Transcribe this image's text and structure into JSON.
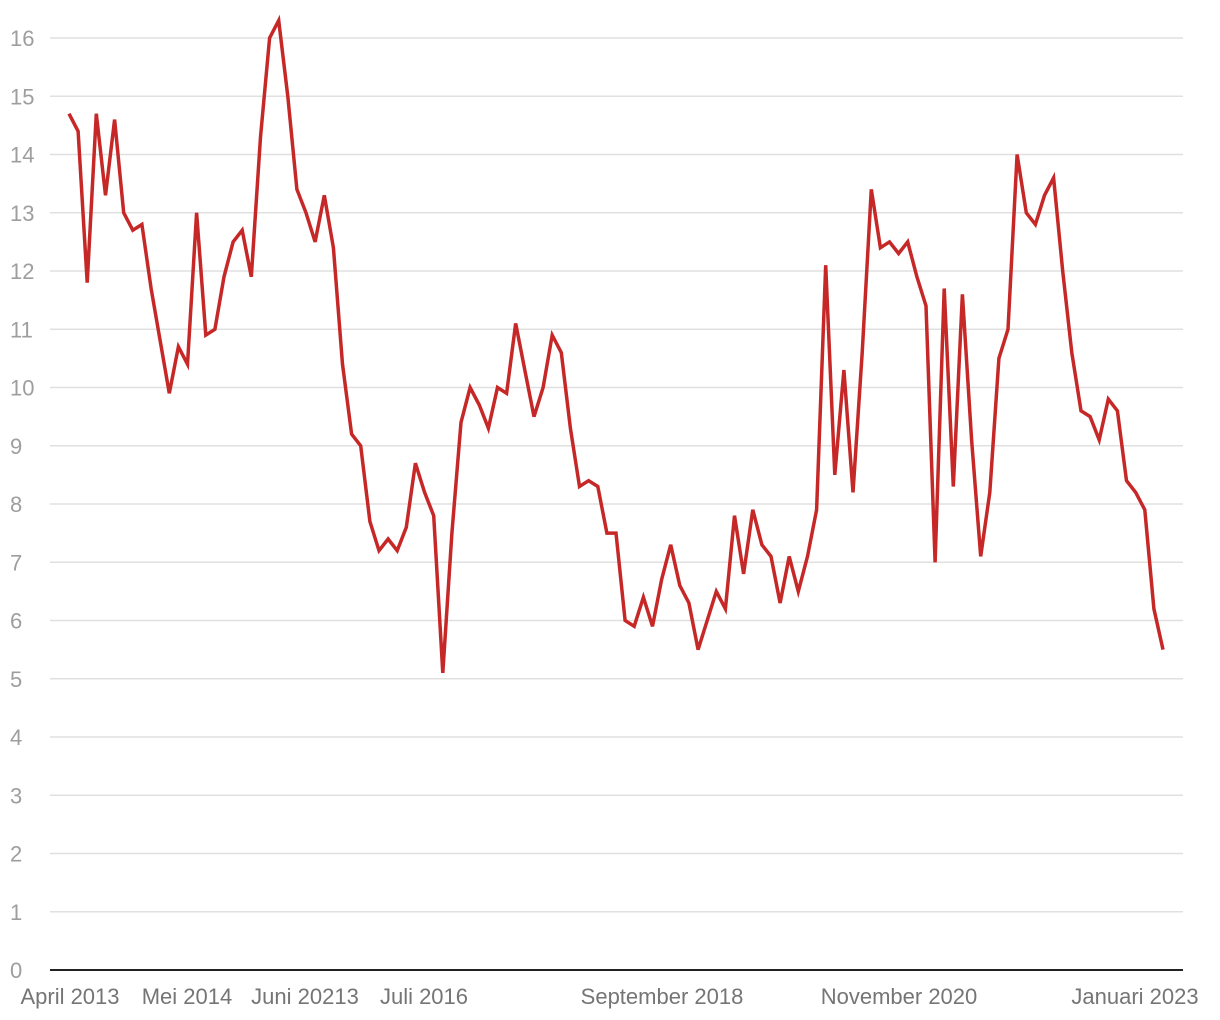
{
  "chart_data": {
    "type": "line",
    "title": "",
    "xlabel": "",
    "ylabel": "",
    "ylim": [
      0,
      16
    ],
    "y_ticks": [
      0,
      1,
      2,
      3,
      4,
      5,
      6,
      7,
      8,
      9,
      10,
      11,
      12,
      13,
      14,
      15,
      16
    ],
    "x_tick_labels": [
      "April 2013",
      "Mei 2014",
      "Juni 20213",
      "Juli 2016",
      "September 2018",
      "November 2020",
      "Januari 2023"
    ],
    "grid": true,
    "legend": "none",
    "series": [
      {
        "color": "#c62828",
        "values": [
          14.7,
          14.4,
          11.8,
          14.7,
          13.3,
          14.6,
          13.0,
          12.7,
          12.8,
          11.7,
          10.8,
          9.9,
          10.7,
          10.4,
          13.0,
          10.9,
          11.0,
          11.9,
          12.5,
          12.7,
          11.9,
          14.3,
          16.0,
          16.3,
          15.0,
          13.4,
          13.0,
          12.5,
          13.3,
          12.4,
          10.4,
          9.2,
          9.0,
          7.7,
          7.2,
          7.4,
          7.2,
          7.6,
          8.7,
          8.2,
          7.8,
          5.1,
          7.5,
          9.4,
          10.0,
          9.7,
          9.3,
          10.0,
          9.9,
          11.1,
          10.3,
          9.5,
          10.0,
          10.9,
          10.6,
          9.3,
          8.3,
          8.4,
          8.3,
          7.5,
          7.5,
          6.0,
          5.9,
          6.4,
          5.9,
          6.7,
          7.3,
          6.6,
          6.3,
          5.5,
          6.0,
          6.5,
          6.2,
          7.8,
          6.8,
          7.9,
          7.3,
          7.1,
          6.3,
          7.1,
          6.5,
          7.1,
          7.9,
          12.1,
          8.5,
          10.3,
          8.2,
          10.6,
          13.4,
          12.4,
          12.5,
          12.3,
          12.5,
          11.9,
          11.4,
          7.0,
          11.7,
          8.3,
          11.6,
          9.1,
          7.1,
          8.2,
          10.5,
          11.0,
          14.0,
          13.0,
          12.8,
          13.3,
          13.6,
          12.0,
          10.6,
          9.6,
          9.5,
          9.1,
          9.8,
          9.6,
          8.4,
          8.2,
          7.9,
          6.2,
          5.5
        ]
      }
    ]
  }
}
